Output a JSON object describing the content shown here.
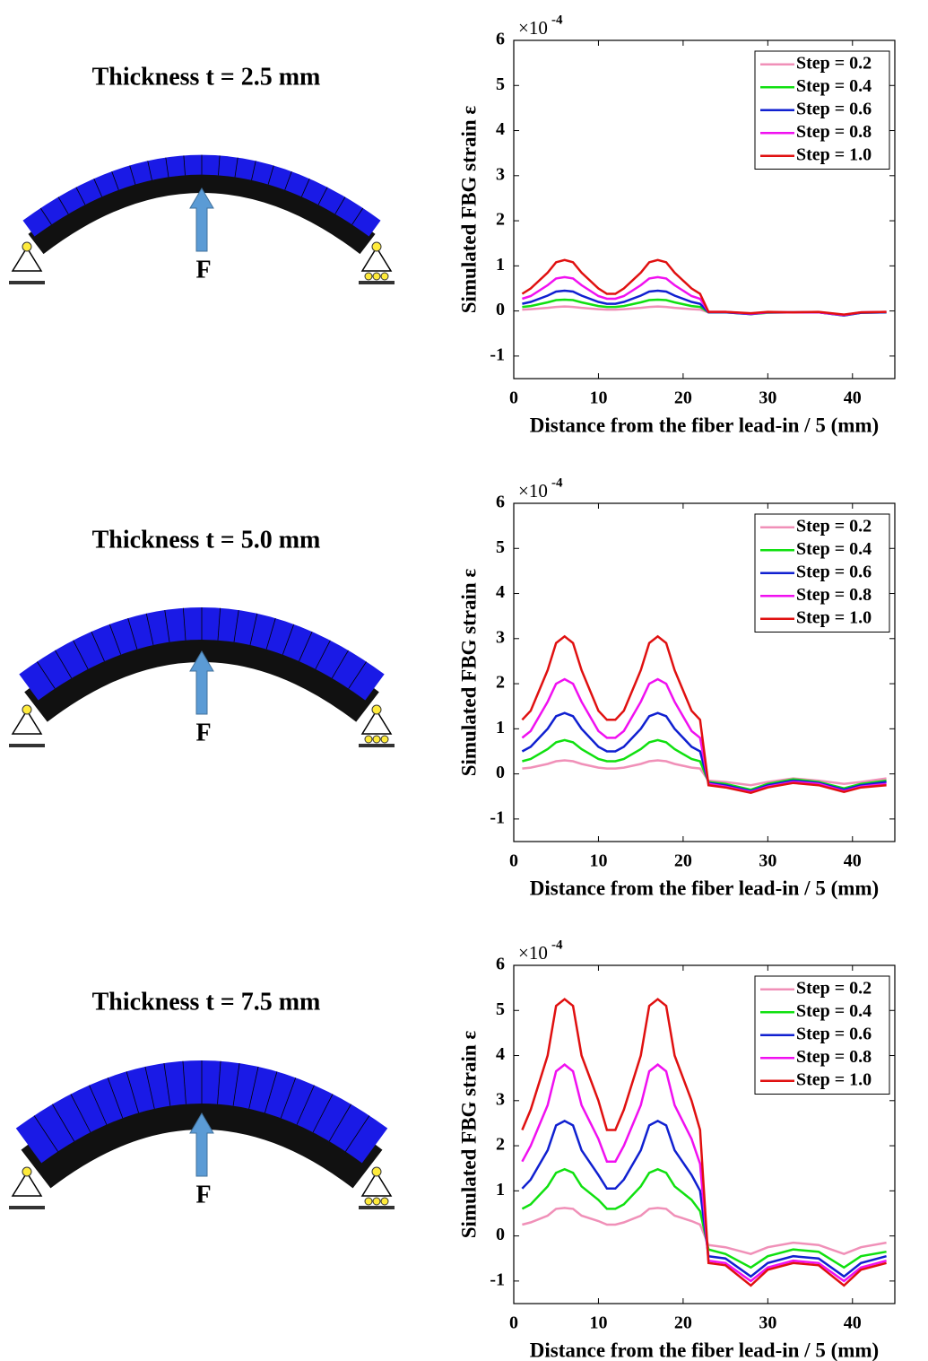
{
  "panels": [
    {
      "title": "Thickness t = 2.5 mm",
      "force_label": "F"
    },
    {
      "title": "Thickness t = 5.0 mm",
      "force_label": "F"
    },
    {
      "title": "Thickness t = 7.5 mm",
      "force_label": "F"
    }
  ],
  "chart_data": [
    {
      "type": "line",
      "xlabel": "Distance from the fiber lead-in / 5 (mm)",
      "ylabel": "Simulated FBG strain ε",
      "y_multiplier": "×10",
      "y_multiplier_exponent": "-4",
      "xlim": [
        0,
        45
      ],
      "xticks": [
        0,
        10,
        20,
        30,
        40
      ],
      "ylim": [
        -1.5,
        6
      ],
      "yticks": [
        -1,
        0,
        1,
        2,
        3,
        4,
        5,
        6
      ],
      "grid": false,
      "legend": "upper-right",
      "x": [
        1,
        2,
        4,
        5,
        6,
        7,
        8,
        10,
        11,
        12,
        13,
        15,
        16,
        17,
        18,
        19,
        21,
        22,
        23,
        25,
        28,
        30,
        33,
        36,
        39,
        41,
        44
      ],
      "series": [
        {
          "name": "Step = 0.2",
          "color": "#f090b8",
          "values": [
            0.03,
            0.04,
            0.07,
            0.09,
            0.1,
            0.09,
            0.07,
            0.04,
            0.03,
            0.03,
            0.04,
            0.07,
            0.09,
            0.1,
            0.09,
            0.07,
            0.04,
            0.03,
            -0.03,
            -0.03,
            -0.06,
            -0.04,
            -0.03,
            -0.03,
            -0.09,
            -0.04,
            -0.03
          ]
        },
        {
          "name": "Step = 0.4",
          "color": "#10e010",
          "values": [
            0.09,
            0.11,
            0.19,
            0.24,
            0.25,
            0.24,
            0.19,
            0.11,
            0.09,
            0.09,
            0.11,
            0.19,
            0.24,
            0.25,
            0.24,
            0.19,
            0.11,
            0.09,
            -0.03,
            -0.03,
            -0.07,
            -0.04,
            -0.03,
            -0.03,
            -0.1,
            -0.04,
            -0.03
          ]
        },
        {
          "name": "Step = 0.6",
          "color": "#1020d0",
          "values": [
            0.16,
            0.2,
            0.34,
            0.43,
            0.45,
            0.43,
            0.34,
            0.2,
            0.16,
            0.16,
            0.2,
            0.34,
            0.43,
            0.45,
            0.43,
            0.34,
            0.2,
            0.16,
            -0.03,
            -0.03,
            -0.07,
            -0.03,
            -0.03,
            -0.03,
            -0.1,
            -0.04,
            -0.03
          ]
        },
        {
          "name": "Step = 0.8",
          "color": "#f010f0",
          "values": [
            0.27,
            0.33,
            0.57,
            0.72,
            0.75,
            0.72,
            0.57,
            0.33,
            0.27,
            0.27,
            0.33,
            0.57,
            0.72,
            0.75,
            0.72,
            0.57,
            0.33,
            0.27,
            -0.02,
            -0.02,
            -0.06,
            -0.03,
            -0.03,
            -0.03,
            -0.09,
            -0.03,
            -0.02
          ]
        },
        {
          "name": "Step = 1.0",
          "color": "#e01010",
          "values": [
            0.38,
            0.5,
            0.85,
            1.08,
            1.13,
            1.08,
            0.85,
            0.5,
            0.38,
            0.38,
            0.5,
            0.85,
            1.08,
            1.13,
            1.08,
            0.85,
            0.5,
            0.38,
            -0.02,
            -0.02,
            -0.05,
            -0.02,
            -0.03,
            -0.02,
            -0.08,
            -0.03,
            -0.02
          ]
        }
      ]
    },
    {
      "type": "line",
      "xlabel": "Distance from the fiber lead-in / 5 (mm)",
      "ylabel": "Simulated FBG strain ε",
      "y_multiplier": "×10",
      "y_multiplier_exponent": "-4",
      "xlim": [
        0,
        45
      ],
      "xticks": [
        0,
        10,
        20,
        30,
        40
      ],
      "ylim": [
        -1.5,
        6
      ],
      "yticks": [
        -1,
        0,
        1,
        2,
        3,
        4,
        5,
        6
      ],
      "grid": false,
      "legend": "upper-right",
      "x": [
        1,
        2,
        4,
        5,
        6,
        7,
        8,
        10,
        11,
        12,
        13,
        15,
        16,
        17,
        18,
        19,
        21,
        22,
        23,
        25,
        28,
        30,
        33,
        36,
        39,
        41,
        44
      ],
      "series": [
        {
          "name": "Step = 0.2",
          "color": "#f090b8",
          "values": [
            0.12,
            0.14,
            0.22,
            0.28,
            0.3,
            0.28,
            0.22,
            0.14,
            0.12,
            0.12,
            0.14,
            0.22,
            0.28,
            0.3,
            0.28,
            0.22,
            0.14,
            0.12,
            -0.15,
            -0.18,
            -0.25,
            -0.18,
            -0.1,
            -0.15,
            -0.22,
            -0.18,
            -0.1
          ]
        },
        {
          "name": "Step = 0.4",
          "color": "#10e010",
          "values": [
            0.28,
            0.33,
            0.55,
            0.7,
            0.75,
            0.7,
            0.55,
            0.33,
            0.28,
            0.28,
            0.33,
            0.55,
            0.7,
            0.75,
            0.7,
            0.55,
            0.33,
            0.28,
            -0.18,
            -0.22,
            -0.35,
            -0.22,
            -0.12,
            -0.18,
            -0.32,
            -0.22,
            -0.15
          ]
        },
        {
          "name": "Step = 0.6",
          "color": "#1020d0",
          "values": [
            0.5,
            0.6,
            1.0,
            1.28,
            1.35,
            1.28,
            1.0,
            0.6,
            0.5,
            0.5,
            0.6,
            1.0,
            1.28,
            1.35,
            1.28,
            1.0,
            0.6,
            0.5,
            -0.2,
            -0.25,
            -0.38,
            -0.25,
            -0.15,
            -0.2,
            -0.35,
            -0.25,
            -0.18
          ]
        },
        {
          "name": "Step = 0.8",
          "color": "#f010f0",
          "values": [
            0.8,
            0.95,
            1.6,
            2.0,
            2.1,
            2.0,
            1.6,
            0.95,
            0.8,
            0.8,
            0.95,
            1.6,
            2.0,
            2.1,
            2.0,
            1.6,
            0.95,
            0.8,
            -0.22,
            -0.28,
            -0.4,
            -0.28,
            -0.18,
            -0.22,
            -0.38,
            -0.28,
            -0.22
          ]
        },
        {
          "name": "Step = 1.0",
          "color": "#e01010",
          "values": [
            1.2,
            1.4,
            2.3,
            2.9,
            3.05,
            2.9,
            2.3,
            1.4,
            1.2,
            1.2,
            1.4,
            2.3,
            2.9,
            3.05,
            2.9,
            2.3,
            1.4,
            1.2,
            -0.25,
            -0.3,
            -0.42,
            -0.3,
            -0.2,
            -0.25,
            -0.4,
            -0.3,
            -0.25
          ]
        }
      ]
    },
    {
      "type": "line",
      "xlabel": "Distance from the fiber lead-in / 5 (mm)",
      "ylabel": "Simulated FBG strain ε",
      "y_multiplier": "×10",
      "y_multiplier_exponent": "-4",
      "xlim": [
        0,
        45
      ],
      "xticks": [
        0,
        10,
        20,
        30,
        40
      ],
      "ylim": [
        -1.5,
        6
      ],
      "yticks": [
        -1,
        0,
        1,
        2,
        3,
        4,
        5,
        6
      ],
      "grid": false,
      "legend": "upper-right",
      "x": [
        1,
        2,
        4,
        5,
        6,
        7,
        8,
        10,
        11,
        12,
        13,
        15,
        16,
        17,
        18,
        19,
        21,
        22,
        23,
        25,
        28,
        30,
        33,
        36,
        39,
        41,
        44
      ],
      "series": [
        {
          "name": "Step = 0.2",
          "color": "#f090b8",
          "values": [
            0.25,
            0.3,
            0.45,
            0.6,
            0.62,
            0.6,
            0.45,
            0.33,
            0.25,
            0.25,
            0.3,
            0.45,
            0.6,
            0.62,
            0.6,
            0.45,
            0.33,
            0.25,
            -0.2,
            -0.25,
            -0.4,
            -0.25,
            -0.15,
            -0.2,
            -0.4,
            -0.25,
            -0.15
          ]
        },
        {
          "name": "Step = 0.4",
          "color": "#10e010",
          "values": [
            0.6,
            0.7,
            1.1,
            1.4,
            1.48,
            1.4,
            1.1,
            0.8,
            0.6,
            0.6,
            0.7,
            1.1,
            1.4,
            1.48,
            1.4,
            1.1,
            0.8,
            0.55,
            -0.3,
            -0.4,
            -0.7,
            -0.45,
            -0.3,
            -0.35,
            -0.7,
            -0.45,
            -0.35
          ]
        },
        {
          "name": "Step = 0.6",
          "color": "#1020d0",
          "values": [
            1.05,
            1.25,
            1.9,
            2.45,
            2.55,
            2.45,
            1.9,
            1.35,
            1.05,
            1.05,
            1.25,
            1.9,
            2.45,
            2.55,
            2.45,
            1.9,
            1.35,
            1.0,
            -0.45,
            -0.5,
            -0.9,
            -0.6,
            -0.45,
            -0.5,
            -0.9,
            -0.6,
            -0.45
          ]
        },
        {
          "name": "Step = 0.8",
          "color": "#f010f0",
          "values": [
            1.65,
            2.0,
            2.9,
            3.65,
            3.8,
            3.65,
            2.9,
            2.15,
            1.65,
            1.65,
            2.0,
            2.9,
            3.65,
            3.8,
            3.65,
            2.9,
            2.15,
            1.6,
            -0.55,
            -0.6,
            -1.0,
            -0.7,
            -0.55,
            -0.6,
            -1.0,
            -0.7,
            -0.55
          ]
        },
        {
          "name": "Step = 1.0",
          "color": "#e01010",
          "values": [
            2.35,
            2.8,
            4.0,
            5.1,
            5.25,
            5.1,
            4.0,
            3.0,
            2.35,
            2.35,
            2.8,
            4.0,
            5.1,
            5.25,
            5.1,
            4.0,
            3.0,
            2.35,
            -0.6,
            -0.65,
            -1.1,
            -0.75,
            -0.6,
            -0.65,
            -1.1,
            -0.75,
            -0.6
          ]
        }
      ]
    }
  ]
}
